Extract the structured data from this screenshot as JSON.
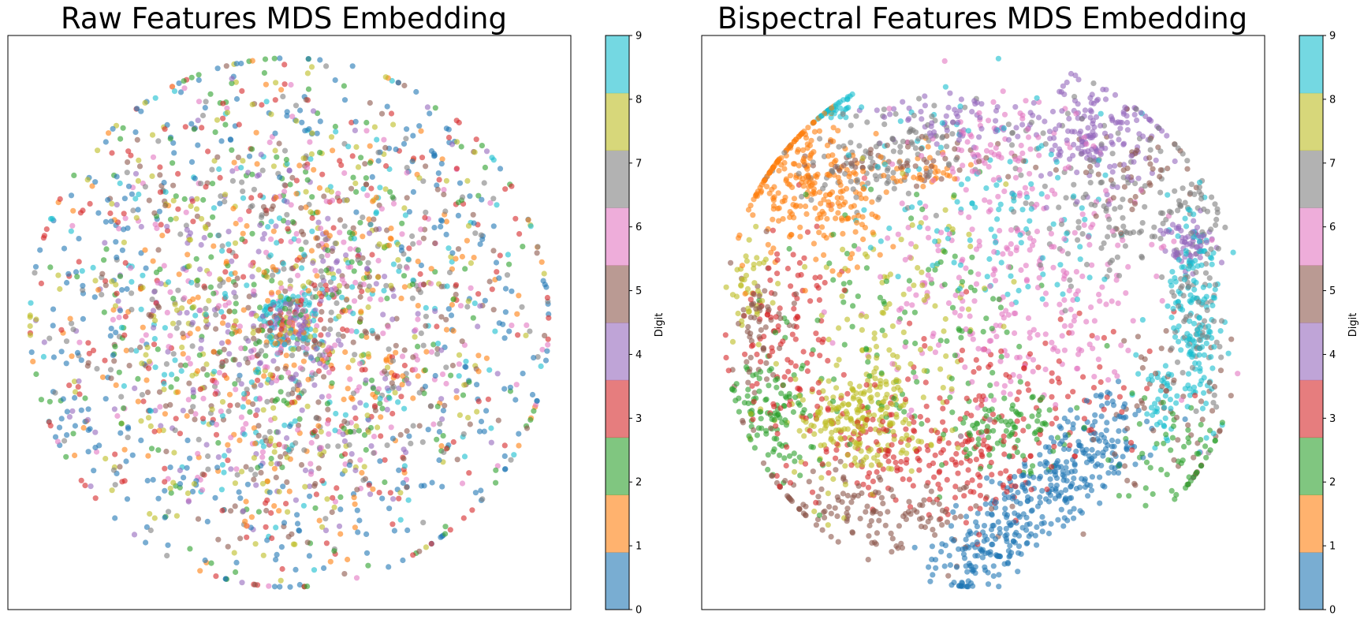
{
  "figure": {
    "background": "#ffffff"
  },
  "chart_data": [
    {
      "type": "scatter",
      "title": "Raw Features MDS Embedding",
      "xlabel": "",
      "ylabel": "",
      "xticks": "hidden",
      "yticks": "hidden",
      "grid": false,
      "point_alpha": 0.6,
      "point_count_approx": 3000,
      "structure": "concentric rings; all digits intermixed; digit 9 and 4 form a small inner ring at the center; digit 0 dominates the outer rim",
      "clusters": [
        {
          "digit": 0,
          "shape": "ring",
          "cx": 0,
          "cy": 0,
          "r": 0.8,
          "spread": 0.14,
          "n": 320,
          "angle_bias": 0
        },
        {
          "digit": 9,
          "shape": "ring",
          "cx": 0,
          "cy": 0,
          "r": 0.09,
          "spread": 0.015,
          "n": 60
        },
        {
          "digit": 4,
          "shape": "ring",
          "cx": 0,
          "cy": 0,
          "r": 0.06,
          "spread": 0.01,
          "n": 25
        },
        {
          "digit": 1,
          "shape": "ring",
          "cx": 0,
          "cy": 0,
          "r": 0.45,
          "spread": 0.3,
          "n": 260
        },
        {
          "digit": 2,
          "shape": "ring",
          "cx": 0,
          "cy": 0,
          "r": 0.55,
          "spread": 0.3,
          "n": 260
        },
        {
          "digit": 3,
          "shape": "ring",
          "cx": 0,
          "cy": 0,
          "r": 0.6,
          "spread": 0.32,
          "n": 260
        },
        {
          "digit": 5,
          "shape": "ring",
          "cx": 0,
          "cy": 0,
          "r": 0.45,
          "spread": 0.28,
          "n": 260
        },
        {
          "digit": 6,
          "shape": "ring",
          "cx": 0,
          "cy": 0,
          "r": 0.4,
          "spread": 0.28,
          "n": 260
        },
        {
          "digit": 7,
          "shape": "ring",
          "cx": 0,
          "cy": 0,
          "r": 0.48,
          "spread": 0.3,
          "n": 260
        },
        {
          "digit": 8,
          "shape": "ring",
          "cx": 0,
          "cy": 0,
          "r": 0.52,
          "spread": 0.3,
          "n": 260
        },
        {
          "digit": 4,
          "shape": "ring",
          "cx": 0,
          "cy": 0,
          "r": 0.42,
          "spread": 0.28,
          "n": 230
        },
        {
          "digit": 9,
          "shape": "ring",
          "cx": 0,
          "cy": 0,
          "r": 0.5,
          "spread": 0.3,
          "n": 200
        }
      ],
      "colorbar": {
        "label": "Digit",
        "ticks": [
          "0",
          "1",
          "2",
          "3",
          "4",
          "5",
          "6",
          "7",
          "8",
          "9"
        ]
      }
    },
    {
      "type": "scatter",
      "title": "Bispectral Features MDS Embedding",
      "xlabel": "",
      "ylabel": "",
      "xticks": "hidden",
      "yticks": "hidden",
      "grid": false,
      "point_alpha": 0.6,
      "point_count_approx": 3000,
      "structure": "digits form distinct clusters: 0 bottom-right band, 1 upper-left, 8 left, 3 lower band, 5 lower-left, 6 center-right, 4 upper-right, 9 right arc and top-left, 2 scattered left and lower-center, 7 upper-right arc",
      "clusters": [
        {
          "digit": 0,
          "shape": "band",
          "x0": 0.55,
          "y0": -0.35,
          "x1": -0.15,
          "y1": -0.95,
          "spread": 0.08,
          "n": 400
        },
        {
          "digit": 1,
          "shape": "blob",
          "cx": -0.75,
          "cy": 0.55,
          "sx": 0.1,
          "sy": 0.14,
          "n": 170
        },
        {
          "digit": 1,
          "shape": "blob",
          "cx": -0.52,
          "cy": 0.45,
          "sx": 0.1,
          "sy": 0.12,
          "n": 110
        },
        {
          "digit": 1,
          "shape": "blob",
          "cx": -0.22,
          "cy": 0.56,
          "sx": 0.08,
          "sy": 0.04,
          "n": 30
        },
        {
          "digit": 8,
          "shape": "blob",
          "cx": -0.45,
          "cy": -0.35,
          "sx": 0.14,
          "sy": 0.12,
          "n": 240
        },
        {
          "digit": 8,
          "shape": "blob",
          "cx": -0.88,
          "cy": 0.12,
          "sx": 0.05,
          "sy": 0.08,
          "n": 40
        },
        {
          "digit": 8,
          "shape": "blob",
          "cx": -0.3,
          "cy": 0.05,
          "sx": 0.18,
          "sy": 0.2,
          "n": 80
        },
        {
          "digit": 3,
          "shape": "band",
          "x0": -0.55,
          "y0": -0.45,
          "x1": 0.15,
          "y1": -0.55,
          "spread": 0.12,
          "n": 220
        },
        {
          "digit": 3,
          "shape": "blob",
          "cx": -0.75,
          "cy": -0.05,
          "sx": 0.1,
          "sy": 0.2,
          "n": 110
        },
        {
          "digit": 3,
          "shape": "blob",
          "cx": 0.15,
          "cy": -0.25,
          "sx": 0.25,
          "sy": 0.15,
          "n": 90
        },
        {
          "digit": 5,
          "shape": "blob",
          "cx": -0.4,
          "cy": -0.7,
          "sx": 0.22,
          "sy": 0.08,
          "n": 140
        },
        {
          "digit": 5,
          "shape": "blob",
          "cx": -0.85,
          "cy": -0.05,
          "sx": 0.06,
          "sy": 0.15,
          "n": 60
        },
        {
          "digit": 5,
          "shape": "blob",
          "cx": 0.7,
          "cy": -0.35,
          "sx": 0.15,
          "sy": 0.2,
          "n": 60
        },
        {
          "digit": 5,
          "shape": "blob",
          "cx": -0.3,
          "cy": 0.6,
          "sx": 0.25,
          "sy": 0.05,
          "n": 60
        },
        {
          "digit": 5,
          "shape": "blob",
          "cx": 0.6,
          "cy": 0.55,
          "sx": 0.1,
          "sy": 0.1,
          "n": 40
        },
        {
          "digit": 6,
          "shape": "blob",
          "cx": 0.15,
          "cy": 0.15,
          "sx": 0.28,
          "sy": 0.25,
          "n": 300
        },
        {
          "digit": 6,
          "shape": "blob",
          "cx": 0.05,
          "cy": 0.65,
          "sx": 0.12,
          "sy": 0.08,
          "n": 60
        },
        {
          "digit": 4,
          "shape": "blob",
          "cx": 0.45,
          "cy": 0.7,
          "sx": 0.12,
          "sy": 0.1,
          "n": 160
        },
        {
          "digit": 4,
          "shape": "blob",
          "cx": 0.78,
          "cy": 0.3,
          "sx": 0.06,
          "sy": 0.05,
          "n": 60
        },
        {
          "digit": 4,
          "shape": "blob",
          "cx": -0.1,
          "cy": 0.75,
          "sx": 0.2,
          "sy": 0.06,
          "n": 70
        },
        {
          "digit": 9,
          "shape": "blob",
          "cx": 0.8,
          "cy": 0.05,
          "sx": 0.05,
          "sy": 0.2,
          "n": 160
        },
        {
          "digit": 9,
          "shape": "blob",
          "cx": -0.57,
          "cy": 0.8,
          "sx": 0.05,
          "sy": 0.02,
          "n": 40
        },
        {
          "digit": 9,
          "shape": "blob",
          "cx": 0.1,
          "cy": 0.4,
          "sx": 0.3,
          "sy": 0.22,
          "n": 120
        },
        {
          "digit": 9,
          "shape": "blob",
          "cx": 0.65,
          "cy": -0.25,
          "sx": 0.05,
          "sy": 0.1,
          "n": 40
        },
        {
          "digit": 2,
          "shape": "blob",
          "cx": -0.8,
          "cy": -0.35,
          "sx": 0.08,
          "sy": 0.12,
          "n": 100
        },
        {
          "digit": 2,
          "shape": "blob",
          "cx": 0.1,
          "cy": -0.4,
          "sx": 0.1,
          "sy": 0.08,
          "n": 90
        },
        {
          "digit": 2,
          "shape": "blob",
          "cx": -0.3,
          "cy": -0.05,
          "sx": 0.25,
          "sy": 0.25,
          "n": 120
        },
        {
          "digit": 2,
          "shape": "blob",
          "cx": 0.75,
          "cy": -0.5,
          "sx": 0.12,
          "sy": 0.1,
          "n": 60
        },
        {
          "digit": 7,
          "shape": "blob",
          "cx": 0.55,
          "cy": 0.45,
          "sx": 0.2,
          "sy": 0.15,
          "n": 150
        },
        {
          "digit": 7,
          "shape": "blob",
          "cx": -0.45,
          "cy": 0.55,
          "sx": 0.15,
          "sy": 0.05,
          "n": 60
        },
        {
          "digit": 7,
          "shape": "blob",
          "cx": 0.82,
          "cy": 0.05,
          "sx": 0.05,
          "sy": 0.25,
          "n": 80
        },
        {
          "digit": 7,
          "shape": "blob",
          "cx": -0.2,
          "cy": 0.7,
          "sx": 0.2,
          "sy": 0.08,
          "n": 60
        }
      ],
      "colorbar": {
        "label": "Digit",
        "ticks": [
          "0",
          "1",
          "2",
          "3",
          "4",
          "5",
          "6",
          "7",
          "8",
          "9"
        ]
      }
    }
  ],
  "colormap": {
    "name": "tab10",
    "colors": [
      "#1f77b4",
      "#ff7f0e",
      "#2ca02c",
      "#d62728",
      "#9467bd",
      "#8c564b",
      "#e377c2",
      "#7f7f7f",
      "#bcbd22",
      "#17becf"
    ]
  }
}
